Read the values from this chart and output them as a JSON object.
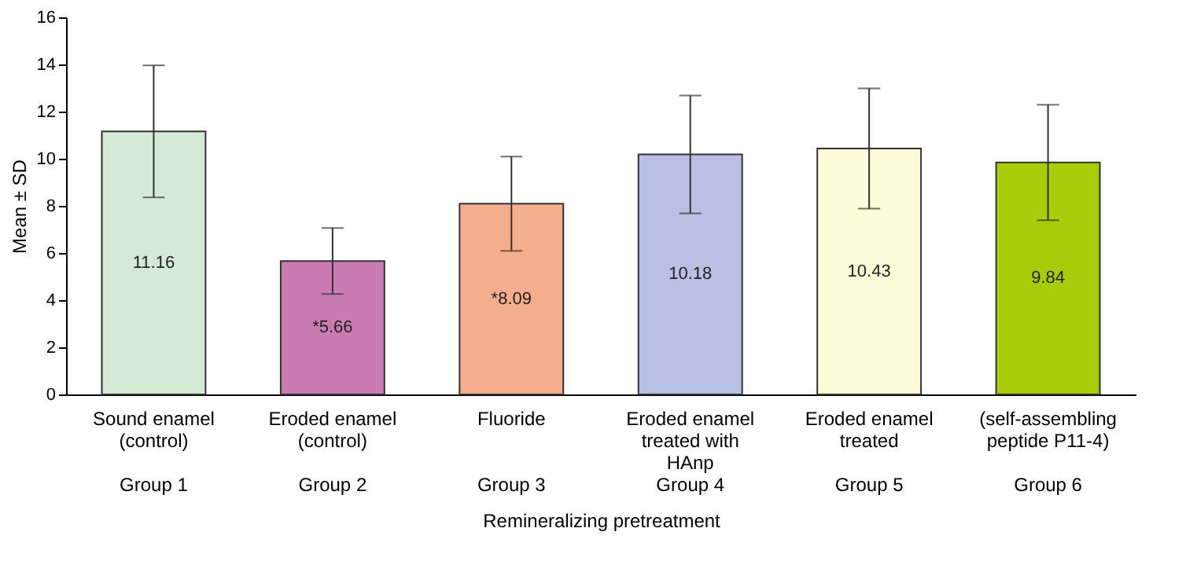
{
  "chart_data": {
    "type": "bar",
    "xlabel": "Remineralizing pretreatment",
    "ylabel": "Mean ± SD",
    "categories": [
      "Sound enamel\n(control)\n\nGroup 1",
      "Eroded enamel\n(control)\n\nGroup 2",
      "Fluoride\n\n\nGroup 3",
      "Eroded enamel\ntreated with\nHAnp\nGroup 4",
      "Eroded enamel\ntreated\n\nGroup 5",
      "(self-assembling\npeptide P11-4)\n\nGroup 6"
    ],
    "values": [
      11.16,
      5.66,
      8.09,
      10.18,
      10.43,
      9.84
    ],
    "value_labels": [
      "11.16",
      "*5.66",
      "*8.09",
      "10.18",
      "10.43",
      "9.84"
    ],
    "errors": [
      2.8,
      1.4,
      2.0,
      2.5,
      2.55,
      2.45
    ],
    "colors": [
      "#d5ead6",
      "#c97bb2",
      "#f4ae8d",
      "#b9c0e4",
      "#fefbd8",
      "#a9cc0a"
    ],
    "ylim": [
      0,
      16
    ],
    "yticks": [
      0,
      2,
      4,
      6,
      8,
      10,
      12,
      14,
      16
    ],
    "grid": false,
    "legend": false
  }
}
